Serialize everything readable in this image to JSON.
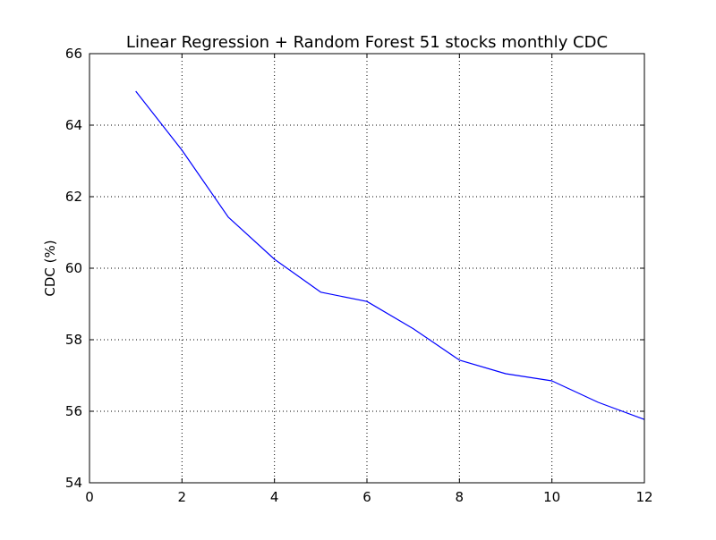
{
  "chart_data": {
    "type": "line",
    "title": "Linear Regression + Random Forest 51 stocks monthly CDC",
    "xlabel": "",
    "ylabel": "CDC (%)",
    "xlim": [
      0,
      12
    ],
    "ylim": [
      54,
      66
    ],
    "x_ticks": [
      0,
      2,
      4,
      6,
      8,
      10,
      12
    ],
    "y_ticks": [
      54,
      56,
      58,
      60,
      62,
      64,
      66
    ],
    "grid": true,
    "series": [
      {
        "color": "#0000ff",
        "x": [
          1,
          2,
          3,
          4,
          5,
          6,
          7,
          8,
          9,
          10,
          11,
          12
        ],
        "y": [
          64.95,
          63.3,
          61.43,
          60.25,
          59.33,
          59.07,
          58.31,
          57.43,
          57.05,
          56.85,
          56.25,
          55.77
        ]
      }
    ]
  }
}
